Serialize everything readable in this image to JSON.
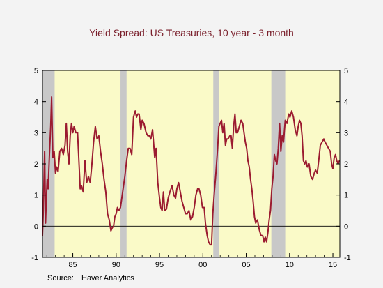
{
  "chart_data": {
    "type": "line",
    "title": "Yield Spread:  US Treasuries, 10 year - 3 month",
    "source_label": "Source:",
    "source_name": "Haver Analytics",
    "xlabel": "",
    "ylabel": "",
    "xlim": [
      1981.5,
      2015.8
    ],
    "ylim": [
      -1,
      5
    ],
    "x_ticks": [
      1985,
      1990,
      1995,
      2000,
      2005,
      2010,
      2015
    ],
    "x_tick_labels": [
      "85",
      "90",
      "95",
      "00",
      "05",
      "10",
      "15"
    ],
    "y_ticks": [
      -1,
      0,
      1,
      2,
      3,
      4,
      5
    ],
    "y_tick_labels": [
      "-1",
      "0",
      "1",
      "2",
      "3",
      "4",
      "5"
    ],
    "grid": false,
    "legend": "none",
    "background_color": "#fafac8",
    "line_color": "#9b1b30",
    "recession_color": "#c8c8c8",
    "zero_line": true,
    "recessions": [
      {
        "start": 1981.5,
        "end": 1982.9
      },
      {
        "start": 1990.5,
        "end": 1991.2
      },
      {
        "start": 2001.2,
        "end": 2001.9
      },
      {
        "start": 2007.9,
        "end": 2009.5
      }
    ],
    "series": [
      {
        "values": [
          [
            1981.5,
            -0.3
          ],
          [
            1981.6,
            0.5
          ],
          [
            1981.75,
            2.4
          ],
          [
            1981.85,
            0.1
          ],
          [
            1981.95,
            0.9
          ],
          [
            1982.05,
            1.5
          ],
          [
            1982.15,
            1.2
          ],
          [
            1982.3,
            2.3
          ],
          [
            1982.45,
            3.2
          ],
          [
            1982.55,
            4.15
          ],
          [
            1982.7,
            2.2
          ],
          [
            1982.85,
            2.4
          ],
          [
            1983.0,
            1.7
          ],
          [
            1983.15,
            1.9
          ],
          [
            1983.3,
            1.75
          ],
          [
            1983.5,
            2.4
          ],
          [
            1983.7,
            2.5
          ],
          [
            1983.9,
            2.3
          ],
          [
            1984.1,
            2.6
          ],
          [
            1984.25,
            3.3
          ],
          [
            1984.4,
            2.4
          ],
          [
            1984.55,
            2.0
          ],
          [
            1984.7,
            2.9
          ],
          [
            1984.85,
            3.3
          ],
          [
            1985.0,
            3.0
          ],
          [
            1985.15,
            3.2
          ],
          [
            1985.35,
            3.0
          ],
          [
            1985.55,
            3.0
          ],
          [
            1985.7,
            2.1
          ],
          [
            1985.85,
            1.2
          ],
          [
            1986.0,
            1.3
          ],
          [
            1986.2,
            1.1
          ],
          [
            1986.4,
            2.1
          ],
          [
            1986.6,
            1.4
          ],
          [
            1986.8,
            1.6
          ],
          [
            1987.0,
            1.4
          ],
          [
            1987.2,
            2.0
          ],
          [
            1987.4,
            2.7
          ],
          [
            1987.6,
            3.2
          ],
          [
            1987.8,
            2.8
          ],
          [
            1988.0,
            2.9
          ],
          [
            1988.2,
            2.4
          ],
          [
            1988.4,
            2.0
          ],
          [
            1988.6,
            1.5
          ],
          [
            1988.8,
            1.1
          ],
          [
            1989.0,
            0.4
          ],
          [
            1989.2,
            0.2
          ],
          [
            1989.4,
            -0.15
          ],
          [
            1989.55,
            -0.05
          ],
          [
            1989.7,
            0.0
          ],
          [
            1989.85,
            0.3
          ],
          [
            1990.0,
            0.4
          ],
          [
            1990.15,
            0.6
          ],
          [
            1990.3,
            0.5
          ],
          [
            1990.5,
            0.6
          ],
          [
            1990.65,
            0.9
          ],
          [
            1990.85,
            1.3
          ],
          [
            1991.0,
            1.6
          ],
          [
            1991.2,
            2.1
          ],
          [
            1991.4,
            2.5
          ],
          [
            1991.6,
            2.5
          ],
          [
            1991.8,
            2.3
          ],
          [
            1992.0,
            3.5
          ],
          [
            1992.2,
            3.7
          ],
          [
            1992.35,
            3.5
          ],
          [
            1992.5,
            3.6
          ],
          [
            1992.65,
            3.6
          ],
          [
            1992.85,
            3.1
          ],
          [
            1993.0,
            3.4
          ],
          [
            1993.2,
            3.3
          ],
          [
            1993.45,
            3.0
          ],
          [
            1993.65,
            2.9
          ],
          [
            1993.85,
            2.9
          ],
          [
            1994.0,
            2.8
          ],
          [
            1994.2,
            3.1
          ],
          [
            1994.45,
            2.2
          ],
          [
            1994.6,
            2.5
          ],
          [
            1994.8,
            1.4
          ],
          [
            1995.0,
            0.9
          ],
          [
            1995.15,
            0.6
          ],
          [
            1995.3,
            0.5
          ],
          [
            1995.45,
            1.1
          ],
          [
            1995.6,
            0.5
          ],
          [
            1995.8,
            0.55
          ],
          [
            1996.0,
            0.9
          ],
          [
            1996.2,
            1.1
          ],
          [
            1996.45,
            1.3
          ],
          [
            1996.65,
            1.0
          ],
          [
            1996.85,
            0.9
          ],
          [
            1997.0,
            1.2
          ],
          [
            1997.2,
            1.4
          ],
          [
            1997.4,
            1.1
          ],
          [
            1997.6,
            0.8
          ],
          [
            1997.8,
            0.6
          ],
          [
            1998.0,
            0.4
          ],
          [
            1998.2,
            0.4
          ],
          [
            1998.4,
            0.5
          ],
          [
            1998.6,
            0.2
          ],
          [
            1998.8,
            0.3
          ],
          [
            1999.0,
            0.6
          ],
          [
            1999.2,
            1.0
          ],
          [
            1999.4,
            1.2
          ],
          [
            1999.55,
            1.2
          ],
          [
            1999.75,
            1.0
          ],
          [
            1999.95,
            0.6
          ],
          [
            2000.15,
            0.6
          ],
          [
            2000.3,
            0.1
          ],
          [
            2000.5,
            -0.3
          ],
          [
            2000.65,
            -0.5
          ],
          [
            2000.85,
            -0.6
          ],
          [
            2001.0,
            -0.6
          ],
          [
            2001.15,
            0.4
          ],
          [
            2001.3,
            1.0
          ],
          [
            2001.5,
            1.7
          ],
          [
            2001.7,
            2.5
          ],
          [
            2001.85,
            3.2
          ],
          [
            2002.0,
            3.3
          ],
          [
            2002.15,
            3.4
          ],
          [
            2002.3,
            3.0
          ],
          [
            2002.45,
            3.3
          ],
          [
            2002.6,
            2.6
          ],
          [
            2002.75,
            2.8
          ],
          [
            2002.9,
            2.8
          ],
          [
            2003.1,
            2.9
          ],
          [
            2003.25,
            2.9
          ],
          [
            2003.4,
            2.5
          ],
          [
            2003.55,
            3.2
          ],
          [
            2003.7,
            3.6
          ],
          [
            2003.85,
            3.0
          ],
          [
            2004.0,
            3.0
          ],
          [
            2004.2,
            3.2
          ],
          [
            2004.4,
            3.4
          ],
          [
            2004.6,
            3.3
          ],
          [
            2004.75,
            3.0
          ],
          [
            2004.9,
            2.7
          ],
          [
            2005.05,
            2.5
          ],
          [
            2005.2,
            2.1
          ],
          [
            2005.35,
            1.9
          ],
          [
            2005.5,
            1.5
          ],
          [
            2005.65,
            1.2
          ],
          [
            2005.8,
            0.8
          ],
          [
            2005.95,
            0.3
          ],
          [
            2006.1,
            0.1
          ],
          [
            2006.3,
            0.2
          ],
          [
            2006.5,
            -0.1
          ],
          [
            2006.7,
            -0.3
          ],
          [
            2006.9,
            -0.3
          ],
          [
            2007.05,
            -0.5
          ],
          [
            2007.2,
            -0.35
          ],
          [
            2007.35,
            -0.5
          ],
          [
            2007.5,
            -0.2
          ],
          [
            2007.65,
            0.2
          ],
          [
            2007.8,
            0.5
          ],
          [
            2007.95,
            1.2
          ],
          [
            2008.1,
            1.6
          ],
          [
            2008.25,
            2.3
          ],
          [
            2008.4,
            2.1
          ],
          [
            2008.55,
            2.0
          ],
          [
            2008.7,
            2.5
          ],
          [
            2008.85,
            3.3
          ],
          [
            2009.0,
            2.4
          ],
          [
            2009.15,
            2.9
          ],
          [
            2009.3,
            2.7
          ],
          [
            2009.5,
            3.4
          ],
          [
            2009.7,
            3.3
          ],
          [
            2009.9,
            3.6
          ],
          [
            2010.05,
            3.5
          ],
          [
            2010.25,
            3.7
          ],
          [
            2010.45,
            3.5
          ],
          [
            2010.65,
            3.1
          ],
          [
            2010.85,
            2.9
          ],
          [
            2011.0,
            3.2
          ],
          [
            2011.15,
            3.4
          ],
          [
            2011.3,
            3.3
          ],
          [
            2011.45,
            2.9
          ],
          [
            2011.6,
            2.1
          ],
          [
            2011.75,
            2.0
          ],
          [
            2011.9,
            2.1
          ],
          [
            2012.05,
            1.9
          ],
          [
            2012.25,
            2.0
          ],
          [
            2012.45,
            1.6
          ],
          [
            2012.65,
            1.5
          ],
          [
            2012.85,
            1.7
          ],
          [
            2013.0,
            1.8
          ],
          [
            2013.2,
            1.7
          ],
          [
            2013.4,
            2.2
          ],
          [
            2013.55,
            2.6
          ],
          [
            2013.75,
            2.7
          ],
          [
            2013.95,
            2.8
          ],
          [
            2014.1,
            2.7
          ],
          [
            2014.3,
            2.6
          ],
          [
            2014.5,
            2.5
          ],
          [
            2014.7,
            2.4
          ],
          [
            2014.85,
            2.0
          ],
          [
            2015.0,
            1.85
          ],
          [
            2015.15,
            2.2
          ],
          [
            2015.3,
            2.3
          ],
          [
            2015.45,
            2.1
          ],
          [
            2015.6,
            2.0
          ],
          [
            2015.75,
            2.1
          ]
        ]
      }
    ]
  }
}
